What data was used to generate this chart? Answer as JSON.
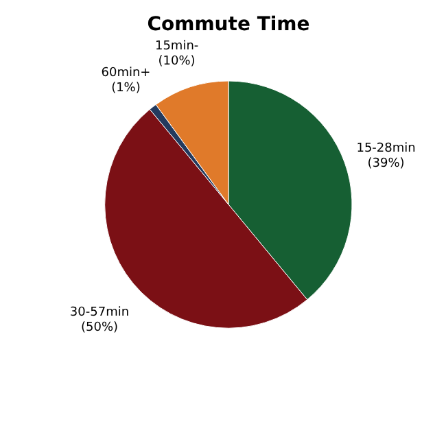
{
  "chart_data": {
    "type": "pie",
    "title": "Commute Time",
    "categories": [
      "15-28min",
      "30-57min",
      "60min+",
      "15min-"
    ],
    "values": [
      39,
      50,
      1,
      10
    ],
    "value_labels": [
      "(39%)",
      "(50%)",
      "(1%)",
      "(10%)"
    ],
    "colors": [
      "#165f33",
      "#7b1015",
      "#243a5e",
      "#e07a2a"
    ],
    "legend": false
  }
}
